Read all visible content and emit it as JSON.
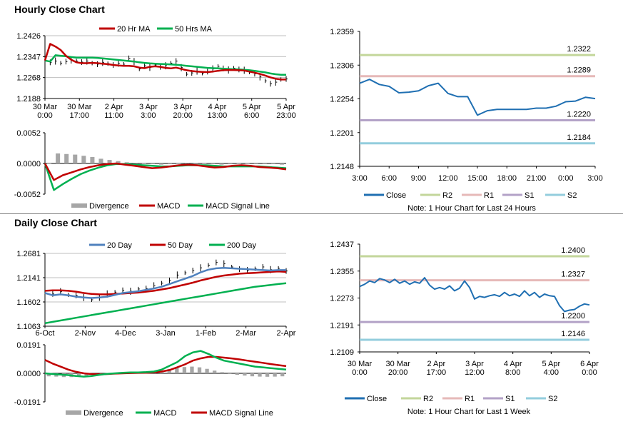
{
  "sections": {
    "hourly_title": "Hourly Close Chart",
    "daily_title": "Daily Close Chart"
  },
  "colors": {
    "ma_fast": "#c00000",
    "ma_slow": "#00b050",
    "ma_blue": "#4f81bd",
    "close": "#1f6fb2",
    "r2": "#c3d69b",
    "r1": "#e6b9b8",
    "s1": "#b3a2c7",
    "s2": "#93cddd",
    "price_bar": "#000000",
    "divergence": "#a6a6a6"
  },
  "chart_data": [
    {
      "id": "hourly_price",
      "type": "line",
      "legend": [
        "20 Hr MA",
        "50 Hrs MA"
      ],
      "yticks": [
        "1.2426",
        "1.2347",
        "1.2268",
        "1.2188"
      ],
      "ylim": [
        1.2188,
        1.2426
      ],
      "xticks": [
        "30 Mar\n0:00",
        "30 Mar\n17:00",
        "2 Apr\n11:00",
        "3 Apr\n3:00",
        "3 Apr\n20:00",
        "4 Apr\n13:00",
        "5 Apr\n6:00",
        "5 Apr\n23:00"
      ],
      "price": [
        1.2332,
        1.2325,
        1.233,
        1.2322,
        1.2328,
        1.2334,
        1.233,
        1.2326,
        1.233,
        1.2322,
        1.2318,
        1.2325,
        1.232,
        1.2315,
        1.2322,
        1.2318,
        1.234,
        1.2328,
        1.23,
        1.2312,
        1.2306,
        1.2315,
        1.2308,
        1.2312,
        1.2322,
        1.233,
        1.2305,
        1.228,
        1.2285,
        1.2292,
        1.2284,
        1.229,
        1.23,
        1.231,
        1.2302,
        1.2296,
        1.2303,
        1.2298,
        1.2295,
        1.2288,
        1.2282,
        1.227,
        1.2255,
        1.2244,
        1.225,
        1.226,
        1.2262
      ],
      "ma20": [
        1.2332,
        1.2395,
        1.2385,
        1.2372,
        1.235,
        1.2335,
        1.2325,
        1.2322,
        1.2322,
        1.2323,
        1.2322,
        1.232,
        1.2318,
        1.2315,
        1.2313,
        1.2312,
        1.2312,
        1.231,
        1.2305,
        1.2303,
        1.2308,
        1.231,
        1.2308,
        1.2304,
        1.2302,
        1.2305,
        1.23,
        1.2295,
        1.2292,
        1.229,
        1.2289,
        1.2288,
        1.229,
        1.2293,
        1.2295,
        1.2296,
        1.2296,
        1.2295,
        1.2294,
        1.229,
        1.2286,
        1.2281,
        1.2275,
        1.2268,
        1.2263,
        1.226,
        1.226
      ],
      "ma50": [
        1.2332,
        1.2328,
        1.2352,
        1.235,
        1.2348,
        1.2345,
        1.2343,
        1.2343,
        1.2343,
        1.2343,
        1.2342,
        1.234,
        1.2338,
        1.2336,
        1.2334,
        1.2332,
        1.233,
        1.2328,
        1.2325,
        1.2323,
        1.2321,
        1.232,
        1.2319,
        1.2318,
        1.2317,
        1.2316,
        1.2314,
        1.2312,
        1.231,
        1.2308,
        1.2306,
        1.2304,
        1.2303,
        1.2302,
        1.2301,
        1.23,
        1.2299,
        1.2298,
        1.2297,
        1.2295,
        1.2293,
        1.229,
        1.2287,
        1.2283,
        1.228,
        1.2278,
        1.2278
      ]
    },
    {
      "id": "hourly_macd",
      "type": "line",
      "legend": [
        "Divergence",
        "MACD",
        "MACD Signal Line"
      ],
      "yticks": [
        "0.0052",
        "0.0000",
        "-0.0052"
      ],
      "ylim": [
        -0.0052,
        0.0052
      ],
      "macd": [
        0.0,
        -0.0028,
        -0.002,
        -0.0015,
        -0.001,
        -0.0006,
        -0.0003,
        -0.0001,
        0.0,
        -0.0002,
        -0.0004,
        -0.0006,
        -0.0008,
        -0.0007,
        -0.0005,
        -0.0003,
        -0.0002,
        -0.0003,
        -0.0005,
        -0.0007,
        -0.0006,
        -0.0004,
        -0.0003,
        -0.0004,
        -0.0006,
        -0.0007,
        -0.0008,
        -0.001
      ],
      "signal": [
        0.0,
        -0.0045,
        -0.0035,
        -0.0026,
        -0.0018,
        -0.0012,
        -0.0007,
        -0.0003,
        -0.0001,
        -0.0001,
        -0.0002,
        -0.0003,
        -0.0004,
        -0.0005,
        -0.0005,
        -0.0004,
        -0.0003,
        -0.0003,
        -0.0003,
        -0.0004,
        -0.0005,
        -0.0005,
        -0.0005,
        -0.0005,
        -0.0005,
        -0.0006,
        -0.0007,
        -0.0008
      ],
      "divergence": [
        0.0,
        0.0017,
        0.0016,
        0.0015,
        0.0013,
        0.0011,
        0.0008,
        0.0006,
        0.0004,
        0.0002,
        0.0001,
        0.0,
        -0.0001,
        -0.0002,
        -0.0001,
        0.0,
        0.0001,
        0.0001,
        0.0,
        -0.0001,
        -0.0002,
        -0.0001,
        0.0,
        0.0,
        -0.0001,
        -0.0001,
        -0.0001,
        -0.0002
      ]
    },
    {
      "id": "hourly_24h",
      "type": "line",
      "yticks": [
        "1.2359",
        "1.2306",
        "1.2254",
        "1.2201",
        "1.2148"
      ],
      "ylim": [
        1.2148,
        1.2359
      ],
      "xticks": [
        "3:00",
        "6:00",
        "9:00",
        "12:00",
        "15:00",
        "18:00",
        "21:00",
        "0:00",
        "3:00"
      ],
      "close": [
        1.2278,
        1.2284,
        1.2276,
        1.2273,
        1.2263,
        1.2264,
        1.2266,
        1.2274,
        1.2278,
        1.2262,
        1.2257,
        1.2257,
        1.2228,
        1.2235,
        1.2237,
        1.2237,
        1.2237,
        1.2237,
        1.2239,
        1.2239,
        1.2242,
        1.2249,
        1.225,
        1.2256,
        1.2254
      ],
      "levels": [
        {
          "name": "R2",
          "value": 1.2322,
          "label": "1.2322"
        },
        {
          "name": "R1",
          "value": 1.2289,
          "label": "1.2289"
        },
        {
          "name": "S1",
          "value": 1.222,
          "label": "1.2220"
        },
        {
          "name": "S2",
          "value": 1.2184,
          "label": "1.2184"
        }
      ],
      "legend": [
        "Close",
        "R2",
        "R1",
        "S1",
        "S2"
      ],
      "note": "Note: 1 Hour Chart for Last 24 Hours"
    },
    {
      "id": "daily_price",
      "type": "line",
      "legend": [
        "20 Day",
        "50 Day",
        "200 Day"
      ],
      "yticks": [
        "1.2681",
        "1.2141",
        "1.1602",
        "1.1063"
      ],
      "ylim": [
        1.1063,
        1.2681
      ],
      "xticks": [
        "6-Oct",
        "2-Nov",
        "4-Dec",
        "3-Jan",
        "1-Feb",
        "2-Mar",
        "2-Apr"
      ],
      "price": [
        1.18,
        1.178,
        1.183,
        1.176,
        1.1745,
        1.17,
        1.165,
        1.169,
        1.178,
        1.182,
        1.186,
        1.184,
        1.189,
        1.19,
        1.196,
        1.202,
        1.208,
        1.22,
        1.225,
        1.23,
        1.236,
        1.242,
        1.248,
        1.245,
        1.238,
        1.233,
        1.23,
        1.234,
        1.238,
        1.232,
        1.235,
        1.229
      ],
      "ma20": [
        1.18,
        1.175,
        1.177,
        1.175,
        1.172,
        1.17,
        1.169,
        1.17,
        1.172,
        1.176,
        1.18,
        1.182,
        1.184,
        1.187,
        1.19,
        1.194,
        1.2,
        1.206,
        1.212,
        1.218,
        1.226,
        1.232,
        1.235,
        1.236,
        1.235,
        1.234,
        1.233,
        1.232,
        1.231,
        1.23,
        1.231,
        1.231
      ],
      "ma50": [
        1.185,
        1.186,
        1.186,
        1.185,
        1.183,
        1.18,
        1.178,
        1.177,
        1.177,
        1.178,
        1.179,
        1.18,
        1.181,
        1.183,
        1.185,
        1.188,
        1.191,
        1.195,
        1.199,
        1.203,
        1.208,
        1.212,
        1.216,
        1.219,
        1.221,
        1.223,
        1.224,
        1.225,
        1.226,
        1.227,
        1.228,
        1.227
      ],
      "ma200": [
        1.113,
        1.116,
        1.119,
        1.122,
        1.125,
        1.128,
        1.131,
        1.134,
        1.137,
        1.14,
        1.143,
        1.146,
        1.149,
        1.152,
        1.155,
        1.158,
        1.161,
        1.164,
        1.167,
        1.17,
        1.173,
        1.176,
        1.179,
        1.182,
        1.185,
        1.188,
        1.191,
        1.194,
        1.196,
        1.198,
        1.2,
        1.202
      ]
    },
    {
      "id": "daily_macd",
      "type": "line",
      "legend": [
        "Divergence",
        "MACD",
        "MACD Signal Line"
      ],
      "yticks": [
        "0.0191",
        "0.0000",
        "-0.0191"
      ],
      "ylim": [
        -0.0191,
        0.0191
      ],
      "macd": [
        0.0,
        -0.0005,
        -0.0008,
        -0.0012,
        -0.0018,
        -0.0022,
        -0.0018,
        -0.001,
        -0.0004,
        0.0,
        0.0004,
        0.0006,
        0.0006,
        0.0008,
        0.0012,
        0.0025,
        0.005,
        0.0075,
        0.0115,
        0.014,
        0.015,
        0.013,
        0.0105,
        0.0085,
        0.0075,
        0.0065,
        0.0055,
        0.0045,
        0.004,
        0.0035,
        0.003,
        0.0025
      ],
      "signal": [
        0.009,
        0.0065,
        0.0045,
        0.0025,
        0.001,
        0.0,
        -0.0005,
        -0.0007,
        -0.0005,
        -0.0002,
        0.0,
        0.0002,
        0.0003,
        0.0004,
        0.0006,
        0.0012,
        0.0022,
        0.004,
        0.006,
        0.0085,
        0.01,
        0.011,
        0.011,
        0.0105,
        0.01,
        0.0093,
        0.0085,
        0.0078,
        0.007,
        0.0062,
        0.0055,
        0.0048
      ],
      "divergence": [
        -0.002,
        -0.0022,
        -0.0025,
        -0.0025,
        -0.002,
        -0.0015,
        -0.001,
        -0.0005,
        0.0,
        0.0003,
        0.0004,
        0.0005,
        0.0004,
        0.0004,
        0.0006,
        0.0013,
        0.0028,
        0.0035,
        0.0042,
        0.0045,
        0.004,
        0.003,
        0.0018,
        0.0008,
        -0.0005,
        -0.001,
        -0.0015,
        -0.002,
        -0.0022,
        -0.0023,
        -0.0022,
        -0.002
      ]
    },
    {
      "id": "weekly_close",
      "type": "line",
      "yticks": [
        "1.2437",
        "1.2355",
        "1.2273",
        "1.2191",
        "1.2109"
      ],
      "ylim": [
        1.2109,
        1.2437
      ],
      "xticks": [
        "30 Mar\n0:00",
        "30 Mar\n20:00",
        "2 Apr\n17:00",
        "3 Apr\n12:00",
        "4 Apr\n8:00",
        "5 Apr\n4:00",
        "6 Apr\n0:00"
      ],
      "close": [
        1.2308,
        1.2315,
        1.2325,
        1.232,
        1.2332,
        1.2328,
        1.232,
        1.233,
        1.2318,
        1.2325,
        1.2315,
        1.2322,
        1.2318,
        1.2335,
        1.2312,
        1.23,
        1.2305,
        1.23,
        1.231,
        1.2295,
        1.2303,
        1.2325,
        1.2305,
        1.227,
        1.2278,
        1.2275,
        1.228,
        1.2283,
        1.2278,
        1.229,
        1.228,
        1.2285,
        1.2278,
        1.2295,
        1.228,
        1.229,
        1.2275,
        1.2285,
        1.228,
        1.2278,
        1.225,
        1.2232,
        1.2236,
        1.2238,
        1.2248,
        1.2255,
        1.2252
      ],
      "levels": [
        {
          "name": "R2",
          "value": 1.24,
          "label": "1.2400"
        },
        {
          "name": "R1",
          "value": 1.2327,
          "label": "1.2327"
        },
        {
          "name": "S1",
          "value": 1.22,
          "label": "1.2200"
        },
        {
          "name": "S2",
          "value": 1.2146,
          "label": "1.2146"
        }
      ],
      "legend": [
        "Close",
        "R2",
        "R1",
        "S1",
        "S2"
      ],
      "note": "Note: 1 Hour Chart for Last 1 Week"
    }
  ]
}
